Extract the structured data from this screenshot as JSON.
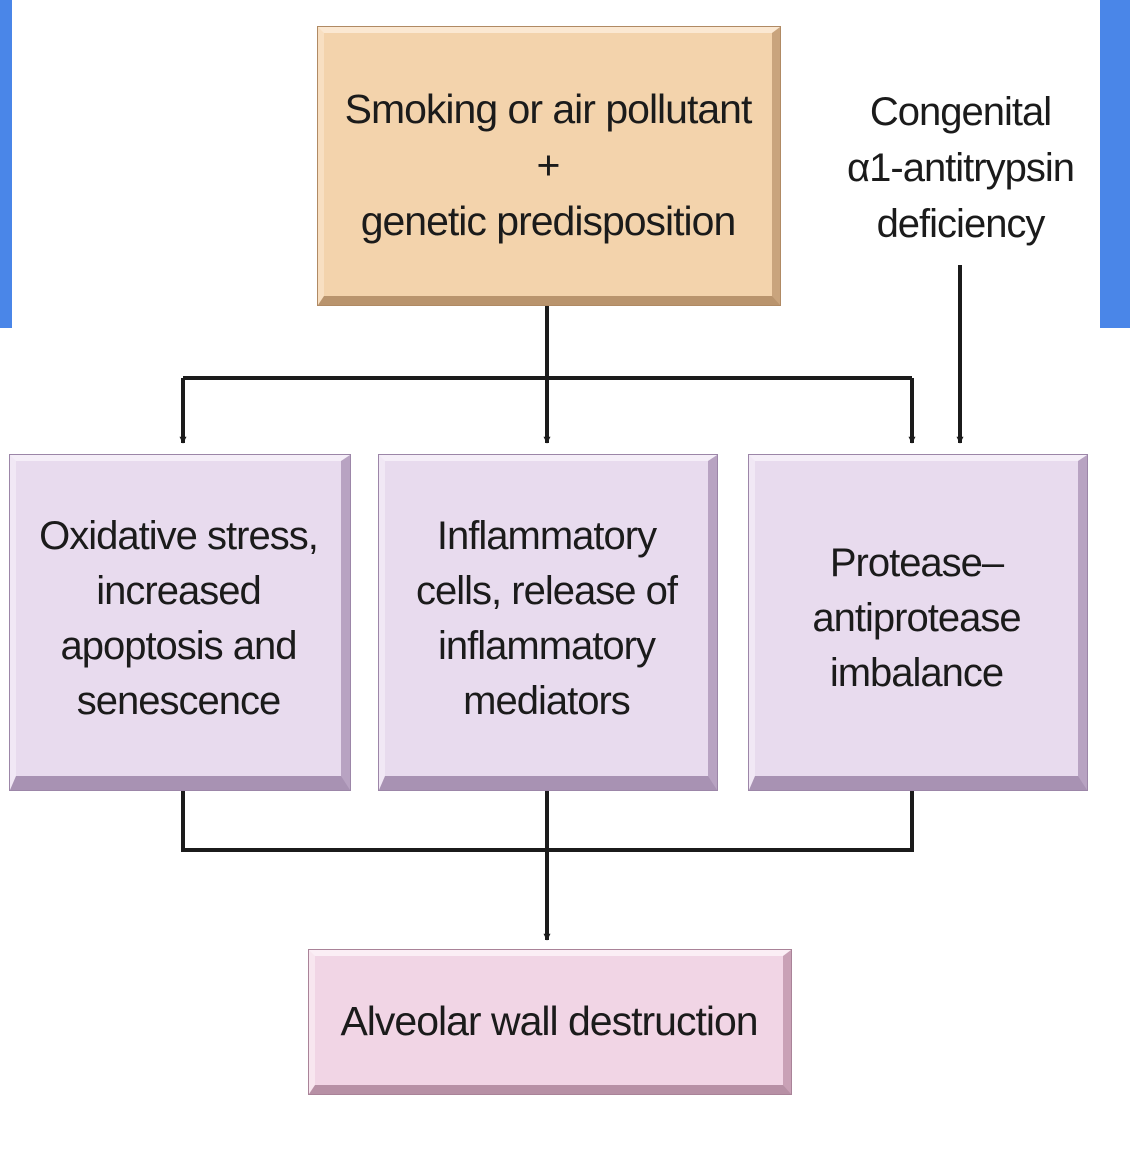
{
  "source": {
    "line1": "Smoking or air pollutant",
    "line2": "+",
    "line3": "genetic predisposition"
  },
  "congenital": {
    "line1": "Congenital",
    "line2": "α1-antitrypsin",
    "line3": "deficiency"
  },
  "mechanisms": [
    {
      "lines": [
        "Oxidative stress,",
        "increased",
        "apoptosis and",
        "senescence"
      ]
    },
    {
      "lines": [
        "Inflammatory",
        "cells, release of",
        "inflammatory",
        "mediators"
      ]
    },
    {
      "lines": [
        "Protease–",
        "antiprotease",
        "imbalance"
      ]
    }
  ],
  "outcome": {
    "label": "Alveolar wall destruction"
  },
  "colors": {
    "slide_accent": "#4a86e8",
    "source_box": "#f3d3ac",
    "mechanism_box": "#e8dbee",
    "outcome_box": "#f1d5e5",
    "connector": "#1b1b1b"
  }
}
